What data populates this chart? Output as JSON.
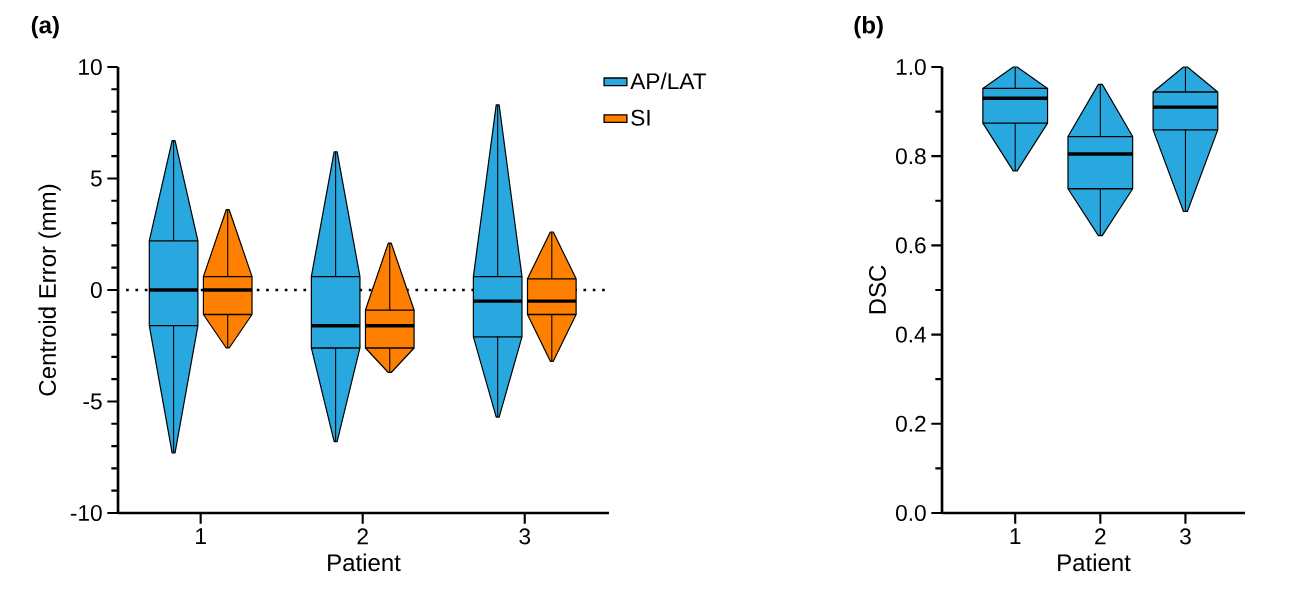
{
  "chart_data": [
    {
      "type": "box",
      "title": "(a)",
      "xlabel": "Patient",
      "ylabel": "Centroid Error (mm)",
      "categories": [
        "1",
        "2",
        "3"
      ],
      "series": [
        {
          "name": "AP/LAT",
          "color": "#29a8e0",
          "boxes": [
            {
              "low": -7.3,
              "q1": -1.6,
              "median": 0,
              "q3": 2.2,
              "high": 6.7
            },
            {
              "low": -6.8,
              "q1": -2.6,
              "median": -1.6,
              "q3": 0.6,
              "high": 6.2
            },
            {
              "low": -5.7,
              "q1": -2.1,
              "median": -0.5,
              "q3": 0.6,
              "high": 8.3
            }
          ]
        },
        {
          "name": "SI",
          "color": "#ff8000",
          "boxes": [
            {
              "low": -2.6,
              "q1": -1.1,
              "median": 0,
              "q3": 0.6,
              "high": 3.6
            },
            {
              "low": -3.7,
              "q1": -2.6,
              "median": -1.6,
              "q3": -0.9,
              "high": 2.1
            },
            {
              "low": -3.2,
              "q1": -1.1,
              "median": -0.5,
              "q3": 0.5,
              "high": 2.6
            }
          ]
        }
      ],
      "ylim": [
        -10,
        10
      ],
      "yticks": [
        -10,
        {
          "value": -9,
          "label": null
        },
        {
          "value": -8,
          "label": null
        },
        {
          "value": -7,
          "label": null
        },
        {
          "value": -6,
          "label": null
        },
        -5,
        {
          "value": -4,
          "label": null
        },
        {
          "value": -3,
          "label": null
        },
        {
          "value": -2,
          "label": null
        },
        {
          "value": -1,
          "label": null
        },
        0,
        {
          "value": 1,
          "label": null
        },
        {
          "value": 2,
          "label": null
        },
        {
          "value": 3,
          "label": null
        },
        {
          "value": 4,
          "label": null
        },
        5,
        {
          "value": 6,
          "label": null
        },
        {
          "value": 7,
          "label": null
        },
        {
          "value": 8,
          "label": null
        },
        {
          "value": 9,
          "label": null
        },
        10
      ],
      "ref_lines": [
        {
          "axis": "y",
          "value": 0,
          "line_style": "dotted"
        }
      ],
      "legend": "top right"
    },
    {
      "type": "box",
      "title": "(b)",
      "xlabel": "Patient",
      "ylabel": "DSC",
      "categories": [
        "1",
        "2",
        "3"
      ],
      "series": [
        {
          "color": "#29a8e0",
          "boxes": [
            {
              "low": 0.767,
              "q1": 0.874,
              "median": 0.93,
              "q3": 0.952,
              "high": 1.0
            },
            {
              "low": 0.622,
              "q1": 0.727,
              "median": 0.805,
              "q3": 0.844,
              "high": 0.961
            },
            {
              "low": 0.676,
              "q1": 0.859,
              "median": 0.91,
              "q3": 0.944,
              "high": 1.0
            }
          ]
        }
      ],
      "ylim": [
        0,
        1
      ],
      "yticks": [
        {
          "value": 0,
          "label": "0.0"
        },
        {
          "value": 0.1,
          "label": null
        },
        {
          "value": 0.2,
          "label": "0.2"
        },
        {
          "value": 0.3,
          "label": null
        },
        {
          "value": 0.4,
          "label": "0.4"
        },
        {
          "value": 0.5,
          "label": null
        },
        {
          "value": 0.6,
          "label": "0.6"
        },
        {
          "value": 0.7,
          "label": null
        },
        {
          "value": 0.8,
          "label": "0.8"
        },
        {
          "value": 0.9,
          "label": null
        },
        {
          "value": 1,
          "label": "1.0"
        }
      ]
    }
  ]
}
